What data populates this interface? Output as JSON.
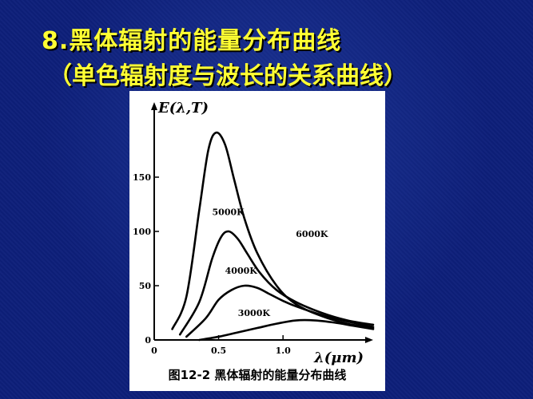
{
  "slide": {
    "title": "8.黑体辐射的能量分布曲线",
    "subtitle": "（单色辐射度与波长的关系曲线）"
  },
  "chart_data": {
    "type": "line",
    "caption": "图12-2  黑体辐射的能量分布曲线",
    "ylabel": "E(λ,T)",
    "xlabel": "λ(μm)",
    "xlim": [
      0,
      1.7
    ],
    "ylim": [
      0,
      200
    ],
    "x_ticks": [
      {
        "value": 0,
        "label": "0"
      },
      {
        "value": 0.5,
        "label": "0.5"
      },
      {
        "value": 1.0,
        "label": "1.0"
      }
    ],
    "y_ticks": [
      {
        "value": 0,
        "label": "0"
      },
      {
        "value": 50,
        "label": "50"
      },
      {
        "value": 100,
        "label": "100"
      },
      {
        "value": 150,
        "label": "150"
      }
    ],
    "series": [
      {
        "name": "6000K",
        "x": [
          0.14,
          0.25,
          0.35,
          0.42,
          0.48,
          0.55,
          0.62,
          0.7,
          0.8,
          0.95,
          1.1,
          1.3,
          1.5,
          1.7
        ],
        "y": [
          10,
          40,
          120,
          175,
          191,
          180,
          148,
          112,
          80,
          50,
          33,
          22,
          15,
          11
        ]
      },
      {
        "name": "5000K",
        "x": [
          0.2,
          0.35,
          0.45,
          0.52,
          0.58,
          0.65,
          0.72,
          0.82,
          0.95,
          1.1,
          1.3,
          1.5,
          1.7
        ],
        "y": [
          5,
          35,
          75,
          95,
          100,
          93,
          80,
          62,
          46,
          35,
          25,
          18,
          14
        ]
      },
      {
        "name": "4000K",
        "x": [
          0.25,
          0.4,
          0.5,
          0.6,
          0.7,
          0.8,
          0.9,
          1.0,
          1.1,
          1.3,
          1.5,
          1.7
        ],
        "y": [
          3,
          20,
          37,
          46,
          50,
          48,
          42,
          36,
          31,
          23,
          17,
          12
        ]
      },
      {
        "name": "3000K",
        "x": [
          0.35,
          0.5,
          0.65,
          0.8,
          0.95,
          1.1,
          1.25,
          1.4,
          1.55,
          1.7
        ],
        "y": [
          0,
          3,
          7,
          11,
          15,
          18,
          18,
          16,
          13,
          10
        ]
      }
    ],
    "grid": false
  }
}
